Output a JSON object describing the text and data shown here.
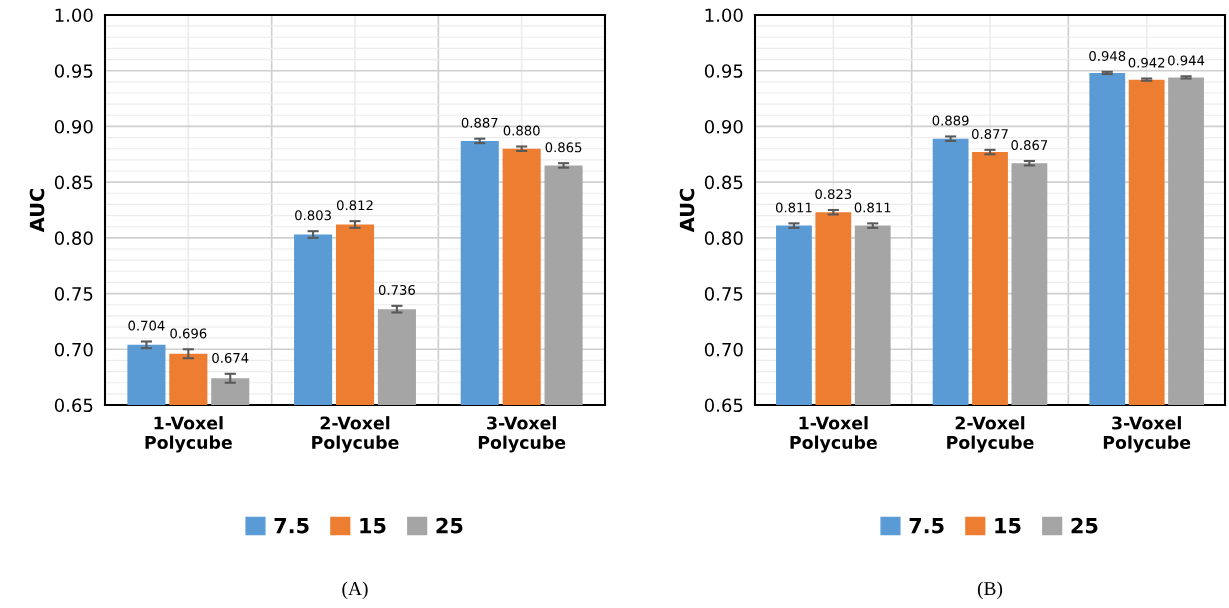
{
  "chart_data": [
    {
      "type": "bar",
      "ylabel": "AUC",
      "categories": [
        "1-Voxel\nPolycube",
        "2-Voxel\nPolycube",
        "3-Voxel\nPolycube"
      ],
      "series": [
        {
          "name": "7.5",
          "color": "#5b9bd5",
          "values": [
            0.704,
            0.803,
            0.887
          ],
          "errors": [
            0.003,
            0.003,
            0.002
          ],
          "value_labels": [
            "0.704",
            "0.803",
            "0.887"
          ]
        },
        {
          "name": "15",
          "color": "#ed7d31",
          "values": [
            0.696,
            0.812,
            0.88
          ],
          "errors": [
            0.004,
            0.003,
            0.002
          ],
          "value_labels": [
            "0.696",
            "0.812",
            "0.880"
          ]
        },
        {
          "name": "25",
          "color": "#a5a5a5",
          "values": [
            0.674,
            0.736,
            0.865
          ],
          "errors": [
            0.004,
            0.003,
            0.002
          ],
          "value_labels": [
            "0.674",
            "0.736",
            "0.865"
          ]
        }
      ],
      "ylim": [
        0.65,
        1.0
      ],
      "yticks": [
        {
          "value": 0.65,
          "label": "0.65"
        },
        {
          "value": 0.7,
          "label": "0.70"
        },
        {
          "value": 0.75,
          "label": "0.75"
        },
        {
          "value": 0.8,
          "label": "0.80"
        },
        {
          "value": 0.85,
          "label": "0.85"
        },
        {
          "value": 0.9,
          "label": "0.90"
        },
        {
          "value": 0.95,
          "label": "0.95"
        },
        {
          "value": 1.0,
          "label": "1.00"
        }
      ],
      "grid": true,
      "legend": "bottom",
      "annotations": [
        "(A)"
      ]
    },
    {
      "type": "bar",
      "ylabel": "AUC",
      "categories": [
        "1-Voxel\nPolycube",
        "2-Voxel\nPolycube",
        "3-Voxel\nPolycube"
      ],
      "series": [
        {
          "name": "7.5",
          "color": "#5b9bd5",
          "values": [
            0.811,
            0.889,
            0.948
          ],
          "errors": [
            0.002,
            0.002,
            0.001
          ],
          "value_labels": [
            "0.811",
            "0.889",
            "0.948"
          ]
        },
        {
          "name": "15",
          "color": "#ed7d31",
          "values": [
            0.823,
            0.877,
            0.942
          ],
          "errors": [
            0.002,
            0.002,
            0.001
          ],
          "value_labels": [
            "0.823",
            "0.877",
            "0.942"
          ]
        },
        {
          "name": "25",
          "color": "#a5a5a5",
          "values": [
            0.811,
            0.867,
            0.944
          ],
          "errors": [
            0.002,
            0.002,
            0.001
          ],
          "value_labels": [
            "0.811",
            "0.867",
            "0.944"
          ]
        }
      ],
      "ylim": [
        0.65,
        1.0
      ],
      "yticks": [
        {
          "value": 0.65,
          "label": "0.65"
        },
        {
          "value": 0.7,
          "label": "0.70"
        },
        {
          "value": 0.75,
          "label": "0.75"
        },
        {
          "value": 0.8,
          "label": "0.80"
        },
        {
          "value": 0.85,
          "label": "0.85"
        },
        {
          "value": 0.9,
          "label": "0.90"
        },
        {
          "value": 0.95,
          "label": "0.95"
        },
        {
          "value": 1.0,
          "label": "1.00"
        }
      ],
      "grid": true,
      "legend": "bottom",
      "annotations": [
        "(B)"
      ]
    }
  ]
}
